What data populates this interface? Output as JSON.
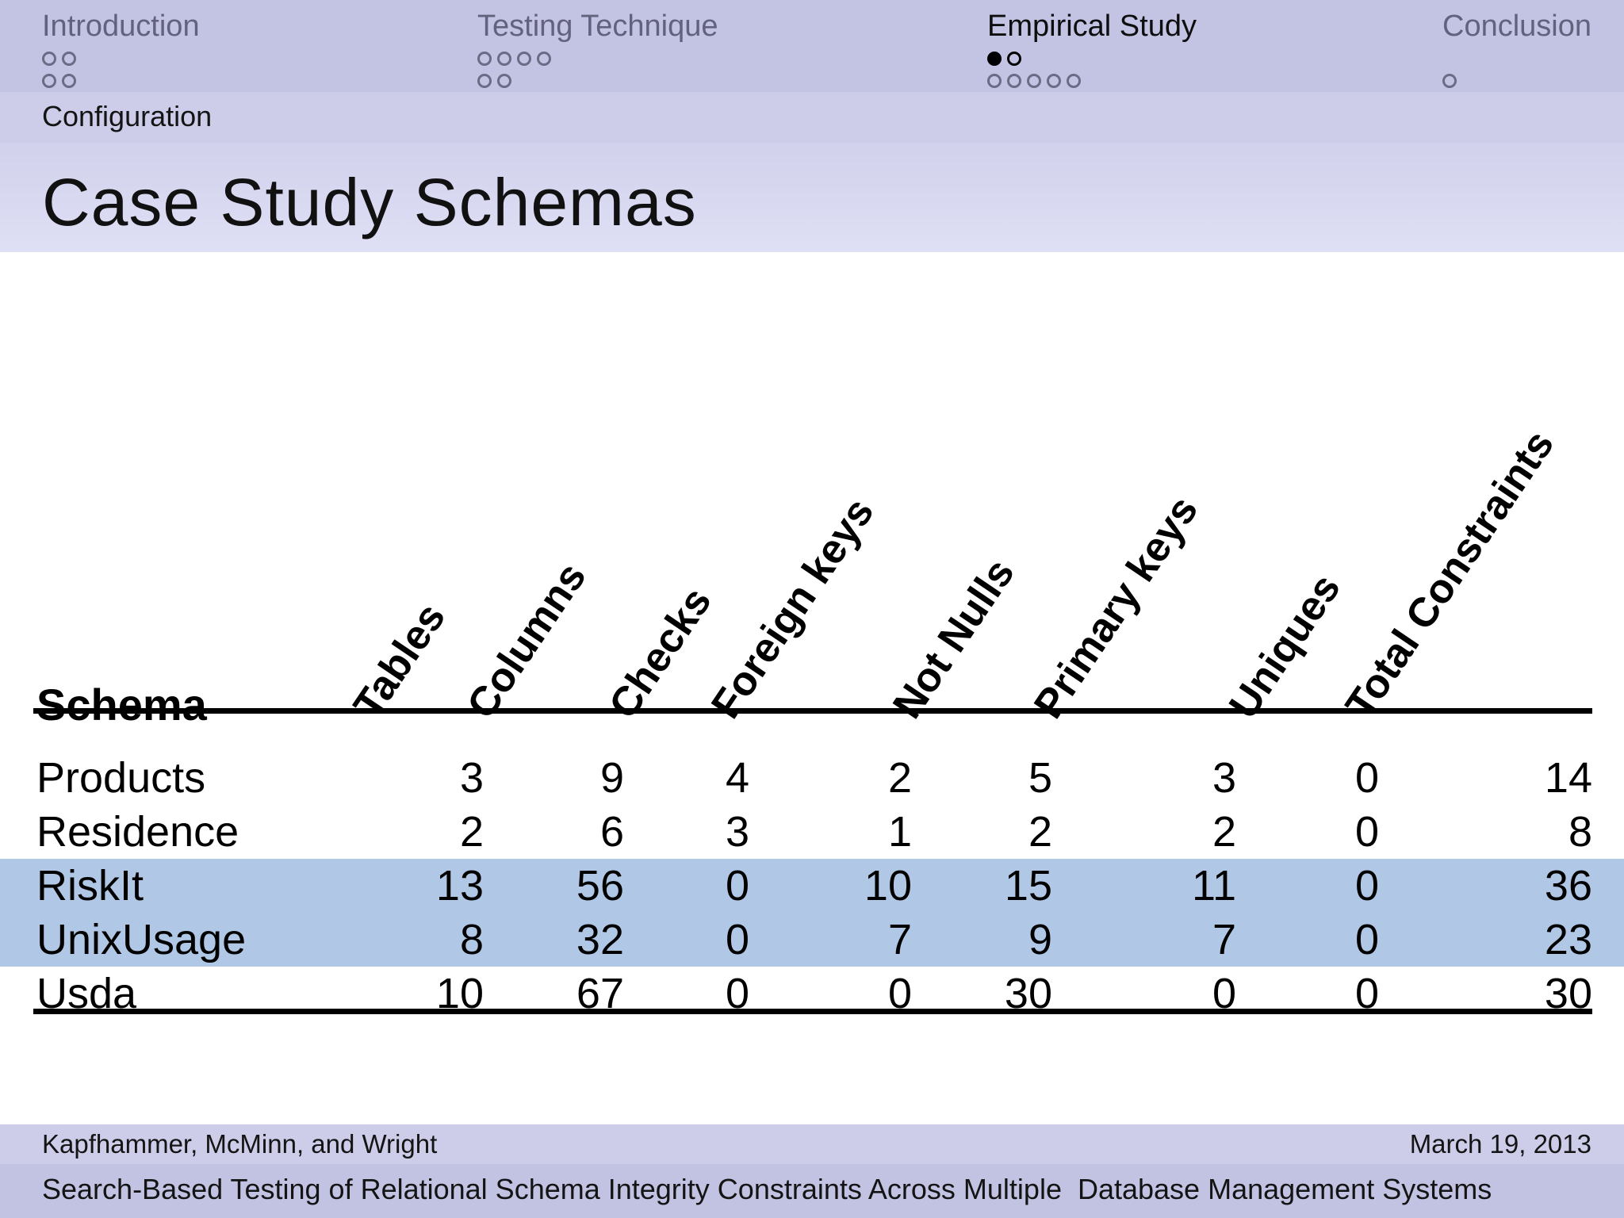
{
  "nav": {
    "sections": [
      {
        "label": "Introduction",
        "active": false,
        "dot_rows": [
          {
            "count": 2,
            "filled": -1,
            "dark": false
          },
          {
            "count": 2,
            "filled": -1,
            "dark": false
          }
        ]
      },
      {
        "label": "Testing Technique",
        "active": false,
        "dot_rows": [
          {
            "count": 4,
            "filled": -1,
            "dark": false
          },
          {
            "count": 2,
            "filled": -1,
            "dark": false
          }
        ]
      },
      {
        "label": "Empirical Study",
        "active": true,
        "dot_rows": [
          {
            "count": 2,
            "filled": 0,
            "dark": true
          },
          {
            "count": 5,
            "filled": -1,
            "dark": false
          }
        ]
      },
      {
        "label": "Conclusion",
        "active": false,
        "dot_rows": [
          {
            "count": 1,
            "filled": -1,
            "dark": false
          }
        ]
      }
    ]
  },
  "subsection": {
    "label": "Configuration"
  },
  "slide": {
    "title": "Case Study Schemas"
  },
  "table": {
    "row_header_label": "Schema",
    "columns": [
      "Tables",
      "Columns",
      "Checks",
      "Foreign keys",
      "Not Nulls",
      "Primary keys",
      "Uniques",
      "Total Constraints"
    ],
    "rows": [
      {
        "schema": "Products",
        "values": [
          3,
          9,
          4,
          2,
          5,
          3,
          0,
          14
        ],
        "highlighted": false
      },
      {
        "schema": "Residence",
        "values": [
          2,
          6,
          3,
          1,
          2,
          2,
          0,
          8
        ],
        "highlighted": false
      },
      {
        "schema": "RiskIt",
        "values": [
          13,
          56,
          0,
          10,
          15,
          11,
          0,
          36
        ],
        "highlighted": true
      },
      {
        "schema": "UnixUsage",
        "values": [
          8,
          32,
          0,
          7,
          9,
          7,
          0,
          23
        ],
        "highlighted": true
      },
      {
        "schema": "Usda",
        "values": [
          10,
          67,
          0,
          0,
          30,
          0,
          0,
          30
        ],
        "highlighted": false
      }
    ],
    "highlight_color": "#b0c8e6"
  },
  "footer": {
    "authors": "Kapfhammer, McMinn, and Wright",
    "date": "March 19, 2013",
    "talk_title": "Search-Based Testing of Relational Schema Integrity Constraints Across Multiple  Database Management Systems"
  },
  "colors": {
    "nav_bar": "#c3c3e4",
    "subsection_bar": "#cdcdea",
    "title_band_top": "#d1d1ec",
    "title_band_bottom": "#dfdff5",
    "row_highlight": "#b0c8e6",
    "inactive_nav_text": "#62627e",
    "active_nav_text": "#0e0e0e"
  }
}
